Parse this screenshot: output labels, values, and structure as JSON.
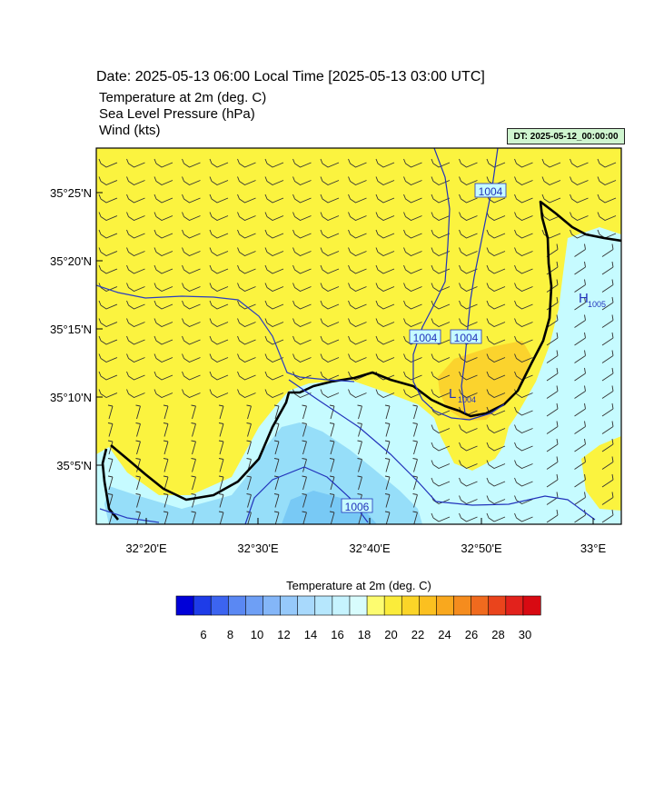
{
  "header": {
    "date_line": "Date: 2025-05-13  06:00 Local Time [2025-05-13  03:00 UTC]",
    "fields": [
      "Temperature at 2m   (deg. C)",
      "Sea Level Pressure   (hPa)",
      "Wind   (kts)"
    ],
    "init_badge": "DT: 2025-05-12_00:00:00"
  },
  "map": {
    "lat_labels": [
      "35°25'N",
      "35°20'N",
      "35°15'N",
      "35°10'N",
      "35°5'N"
    ],
    "lon_labels": [
      "32°20'E",
      "32°30'E",
      "32°40'E",
      "32°50'E",
      "33°E"
    ],
    "isobar_labels": [
      "1004",
      "1004",
      "1004",
      "1006"
    ],
    "pressure_centers": [
      {
        "symbol": "L",
        "value": "1004"
      },
      {
        "symbol": "H",
        "value": "1005"
      }
    ],
    "colors": {
      "warm_fill": "#fbf33f",
      "warm_center": "#fbd32d",
      "cool_fill": "#c6fbff",
      "cold_fill": "#96def9",
      "coldest_fill": "#78c9f5",
      "isobar": "#2233bb",
      "coast": "#000000"
    }
  },
  "colorbar": {
    "title": "Temperature at 2m  (deg. C)",
    "tick_labels": [
      "6",
      "8",
      "10",
      "12",
      "14",
      "16",
      "18",
      "20",
      "22",
      "24",
      "26",
      "28",
      "30"
    ],
    "colors": [
      "#0000d8",
      "#1e3ce8",
      "#3c64f0",
      "#5a88f3",
      "#6e9ff5",
      "#84b6f8",
      "#96c9fa",
      "#a8d9fc",
      "#b6e7fd",
      "#c6f3fe",
      "#d8fcfd",
      "#fdfc70",
      "#fbec3a",
      "#fbd528",
      "#fbc020",
      "#f9a81e",
      "#f58c1e",
      "#f06a1e",
      "#ea441c",
      "#e2221c",
      "#d80a12"
    ]
  }
}
